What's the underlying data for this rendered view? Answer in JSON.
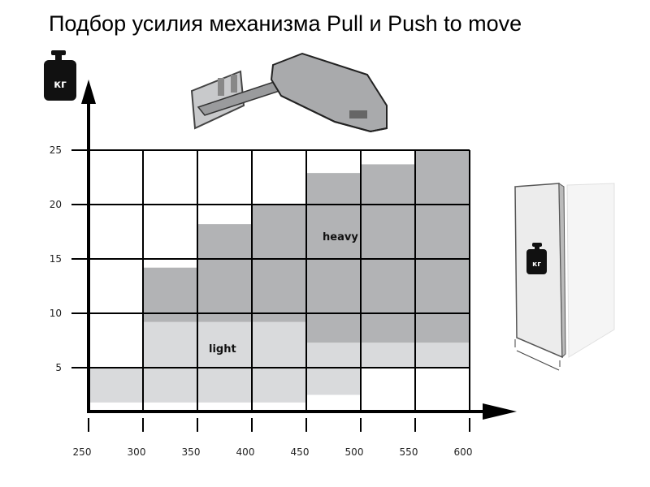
{
  "title": "Подбор усилия механизма Pull и Push to move",
  "weight_icon_text": "кг",
  "chart_data": {
    "type": "range-bar",
    "title": "Подбор усилия механизма Pull и Push to move",
    "xlabel": "",
    "ylabel": "",
    "x_ticks": [
      250,
      300,
      350,
      400,
      450,
      500,
      550,
      600
    ],
    "y_ticks": [
      5,
      10,
      15,
      20,
      25
    ],
    "xlim": [
      250,
      600
    ],
    "ylim": [
      1,
      25
    ],
    "grid": true,
    "colors": {
      "light": "#d9dadc",
      "heavy": "#b2b3b5",
      "grid": "#000000"
    },
    "series": [
      {
        "name": "light",
        "ranges": [
          [
            1.8,
            5
          ],
          [
            1.8,
            9.2
          ],
          [
            1.8,
            9.2
          ],
          [
            1.8,
            9.2
          ],
          [
            2.5,
            7.3
          ],
          [
            5,
            7.3
          ],
          [
            5,
            7.3
          ]
        ]
      },
      {
        "name": "heavy",
        "ranges": [
          null,
          [
            9.2,
            14.2
          ],
          [
            9.2,
            18.2
          ],
          [
            9.2,
            20
          ],
          [
            7.3,
            22.9
          ],
          [
            7.3,
            23.7
          ],
          [
            7.3,
            25
          ]
        ]
      }
    ],
    "intervals": [
      "250-300",
      "300-350",
      "350-400",
      "400-450",
      "450-500",
      "500-550",
      "550-600"
    ]
  }
}
